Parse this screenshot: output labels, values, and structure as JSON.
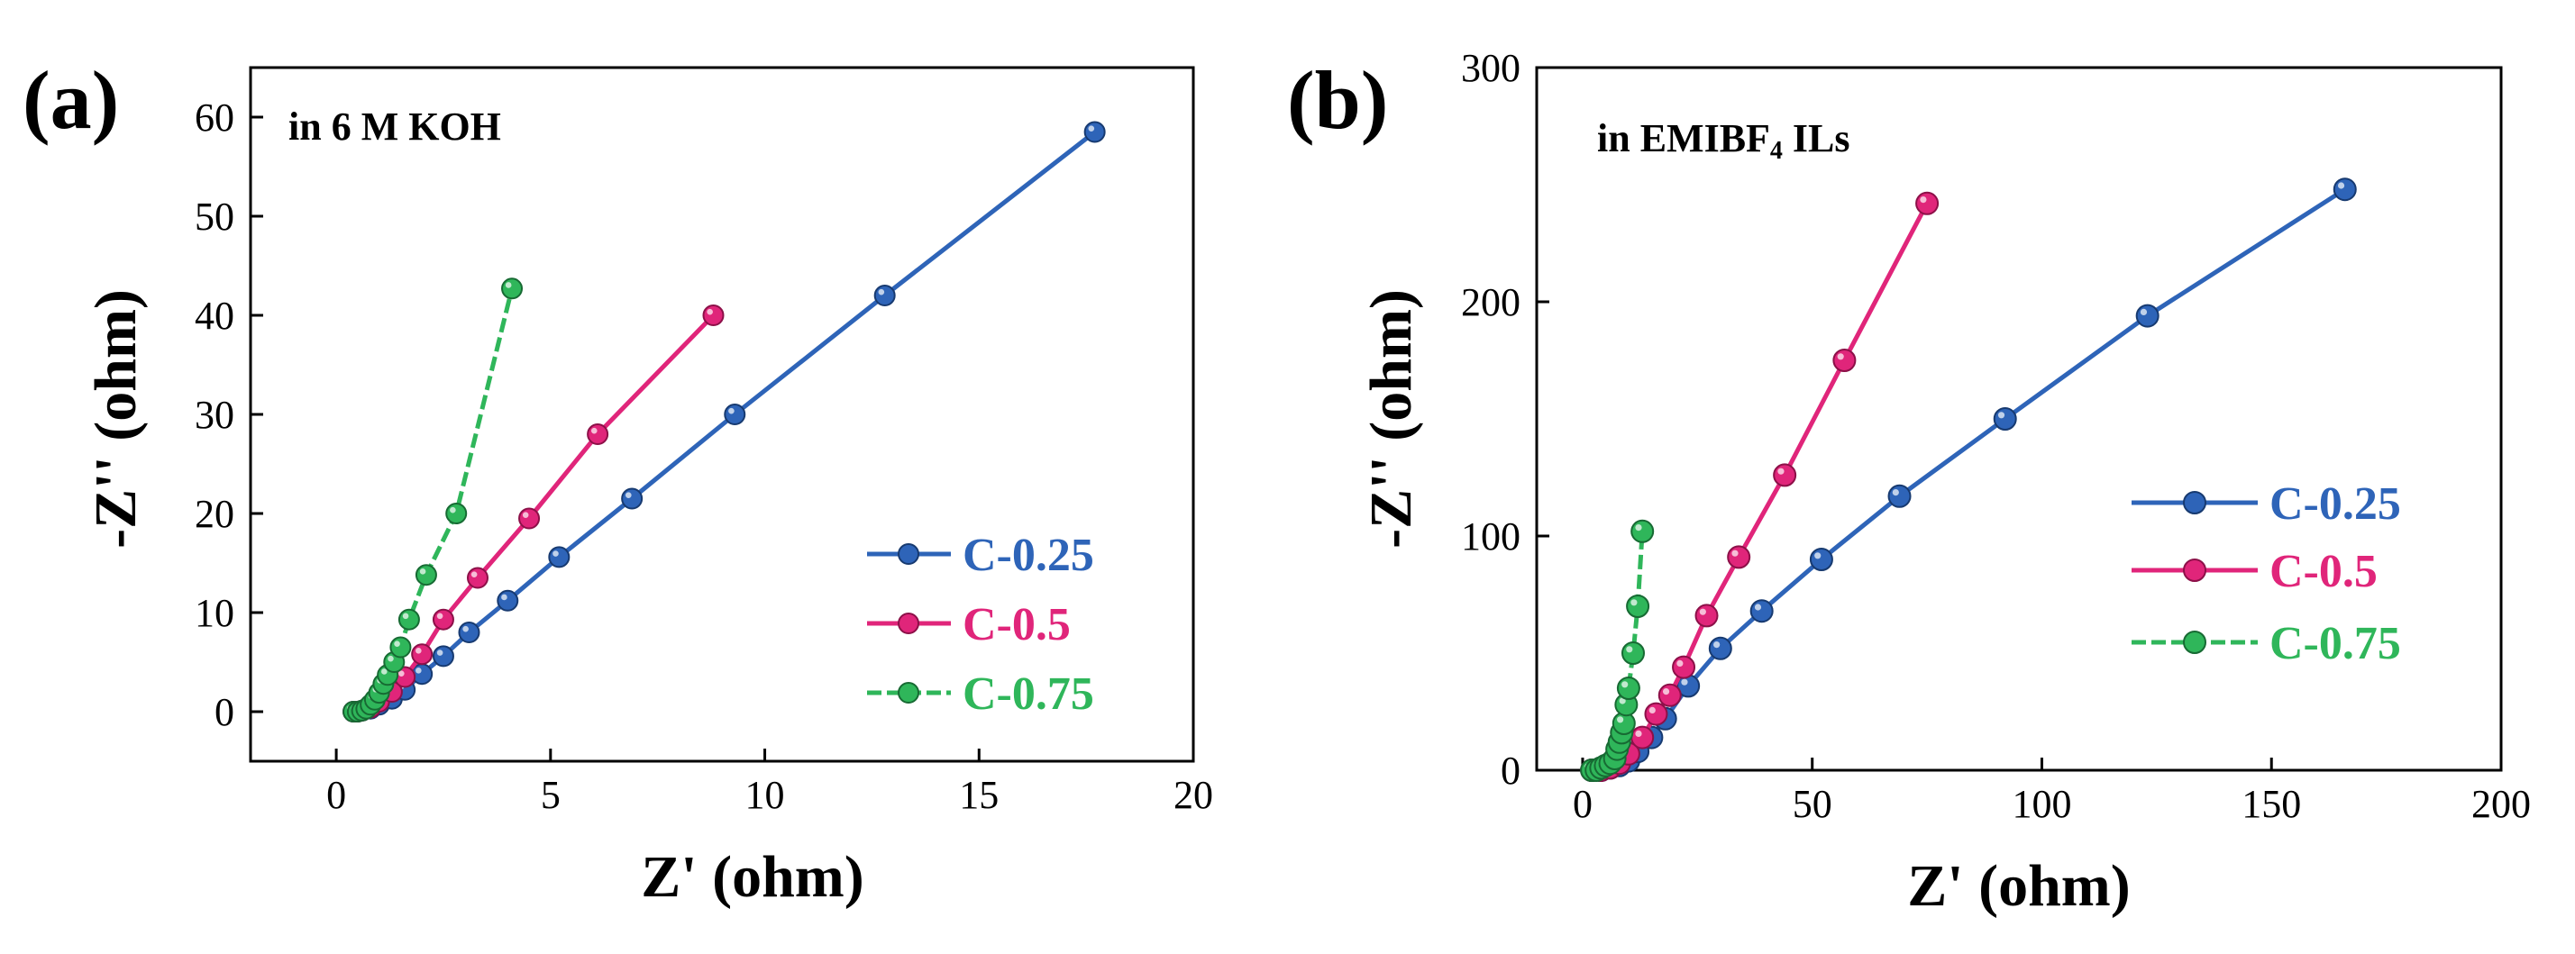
{
  "figure": {
    "panels": [
      {
        "panel_label": "(a)",
        "annotation": "in 6 M KOH",
        "annotation_sub": ""
      },
      {
        "panel_label": "(b)",
        "annotation": "in EMIBF",
        "annotation_sub": "4",
        "annotation_tail": " ILs"
      }
    ]
  },
  "colors": {
    "C-0.25": "#2e64b8",
    "C-0.5": "#e0257a",
    "C-0.75": "#2fb65a"
  },
  "chart_data": [
    {
      "type": "line",
      "title": "in 6 M KOH",
      "xlabel": "Z' (ohm)",
      "ylabel": "-Z'' (ohm)",
      "xlim": [
        -2,
        20
      ],
      "ylim": [
        -5,
        65
      ],
      "xticks": [
        0,
        5,
        10,
        15,
        20
      ],
      "yticks": [
        0,
        10,
        20,
        30,
        40,
        50,
        60
      ],
      "legend_position": "center-right",
      "series": [
        {
          "name": "C-0.25",
          "x": [
            0.4,
            0.5,
            0.6,
            0.8,
            1.0,
            1.3,
            1.6,
            2.0,
            2.5,
            3.1,
            4.0,
            5.2,
            6.9,
            9.3,
            12.8,
            17.7
          ],
          "y": [
            0.0,
            0.0,
            0.1,
            0.3,
            0.7,
            1.3,
            2.2,
            3.8,
            5.6,
            8.0,
            11.2,
            15.6,
            21.5,
            30.0,
            42.0,
            58.5
          ]
        },
        {
          "name": "C-0.5",
          "x": [
            0.4,
            0.5,
            0.6,
            0.8,
            1.0,
            1.3,
            1.6,
            2.0,
            2.5,
            3.3,
            4.5,
            6.1,
            8.8
          ],
          "y": [
            0.0,
            0.0,
            0.1,
            0.4,
            1.0,
            2.0,
            3.5,
            5.8,
            9.3,
            13.5,
            19.5,
            28.0,
            40.0
          ]
        },
        {
          "name": "C-0.75",
          "x": [
            0.4,
            0.5,
            0.6,
            0.7,
            0.8,
            0.9,
            1.0,
            1.1,
            1.2,
            1.35,
            1.5,
            1.7,
            2.1,
            2.8,
            4.1
          ],
          "y": [
            0.0,
            0.0,
            0.1,
            0.3,
            0.7,
            1.2,
            1.9,
            2.8,
            3.7,
            5.0,
            6.5,
            9.3,
            13.8,
            20.0,
            42.7
          ]
        }
      ]
    },
    {
      "type": "line",
      "title": "in EMIBF4 ILs",
      "xlabel": "Z' (ohm)",
      "ylabel": "-Z'' (ohm)",
      "xlim": [
        -10,
        200
      ],
      "ylim": [
        0,
        300
      ],
      "xticks": [
        0,
        50,
        100,
        150,
        200
      ],
      "yticks": [
        0,
        100,
        200,
        300
      ],
      "legend_position": "center-right",
      "series": [
        {
          "name": "C-0.25",
          "x": [
            2,
            4,
            6,
            8,
            10,
            12,
            15,
            18,
            23,
            30,
            39,
            52,
            69,
            92,
            123,
            166
          ],
          "y": [
            0,
            0,
            1,
            2,
            4,
            8,
            14,
            22,
            36,
            52,
            68,
            90,
            117,
            150,
            194,
            248
          ]
        },
        {
          "name": "C-0.5",
          "x": [
            2,
            4,
            6,
            8,
            10,
            13,
            16,
            19,
            22,
            27,
            34,
            44,
            57,
            75
          ],
          "y": [
            0,
            0,
            1,
            3,
            7,
            14,
            24,
            32,
            44,
            66,
            91,
            126,
            175,
            242
          ]
        },
        {
          "name": "C-0.75",
          "x": [
            2,
            3,
            4,
            5,
            6,
            7,
            7.5,
            8,
            8.5,
            9,
            9.5,
            10,
            11,
            12,
            13
          ],
          "y": [
            0,
            0,
            1,
            2,
            3,
            5,
            9,
            12,
            16,
            20,
            28,
            35,
            50,
            70,
            102
          ]
        }
      ]
    }
  ]
}
